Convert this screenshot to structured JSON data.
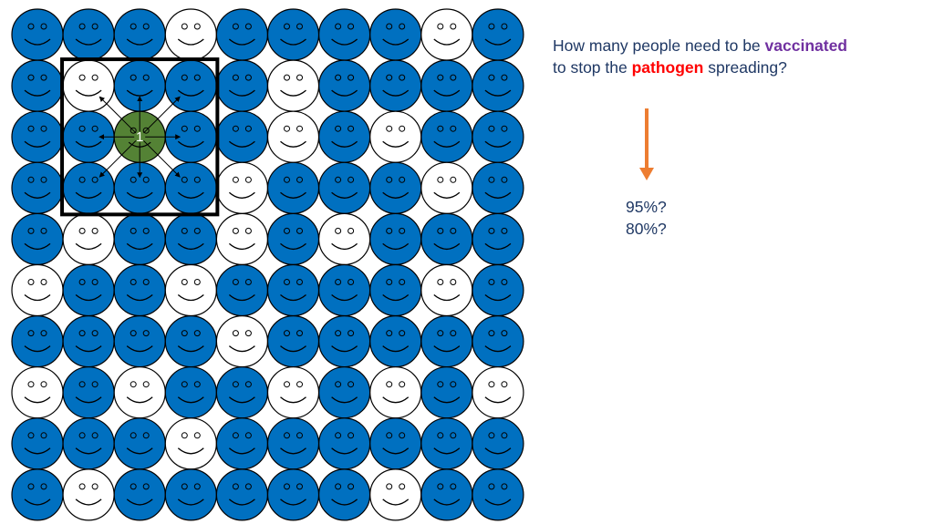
{
  "question": {
    "part1": "How many people need to be ",
    "vaccinated": "vaccinated",
    "part2": "to stop the ",
    "pathogen": "pathogen",
    "part3": " spreading?"
  },
  "answers": [
    "95%?",
    "80%?"
  ],
  "infected_label": "1",
  "colors": {
    "vaccinated": "#0070c0",
    "unvaccinated": "#ffffff",
    "infected": "#548235",
    "text": "#1f3864",
    "vaccinated_keyword": "#7030a0",
    "pathogen_keyword": "#ff0000",
    "arrow": "#ed7d31"
  },
  "grid": {
    "rows": 10,
    "cols": 10,
    "legend_codes": {
      "V": "vaccinated",
      "U": "unvaccinated",
      "I": "infected"
    },
    "cells": [
      "VVVUVVVVUV",
      "VUVVVUVVVV",
      "VVIVVUVUVV",
      "VVVVUVVVUV",
      "VUVVUVUVVV",
      "UVVUVVVVUV",
      "VVVVUVVVVV",
      "UVUVVUVUVU",
      "VVVUVVVVVV",
      "VUVVVVVUVV"
    ]
  },
  "neighborhood_box": {
    "rows": [
      1,
      3
    ],
    "cols": [
      1,
      3
    ]
  }
}
